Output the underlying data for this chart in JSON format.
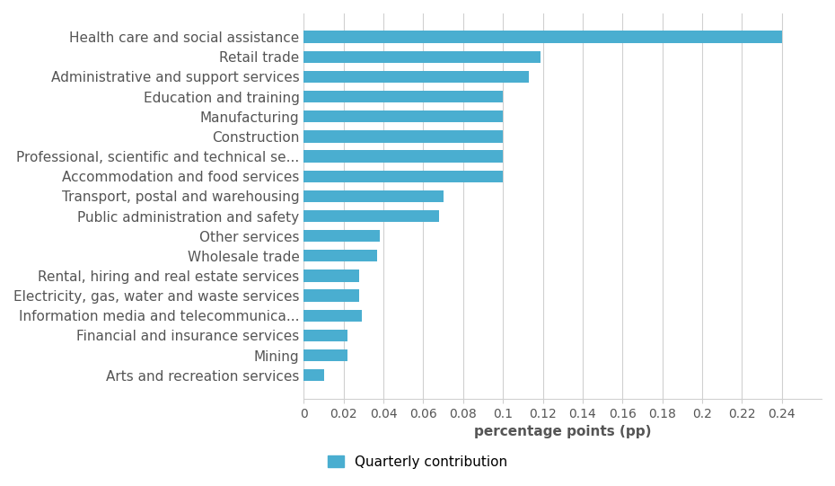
{
  "categories": [
    "Health care and social assistance",
    "Retail trade",
    "Administrative and support services",
    "Education and training",
    "Manufacturing",
    "Construction",
    "Professional, scientific and technical se...",
    "Accommodation and food services",
    "Transport, postal and warehousing",
    "Public administration and safety",
    "Other services",
    "Wholesale trade",
    "Rental, hiring and real estate services",
    "Electricity, gas, water and waste services",
    "Information media and telecommunica...",
    "Financial and insurance services",
    "Mining",
    "Arts and recreation services"
  ],
  "values": [
    0.24,
    0.119,
    0.113,
    0.1,
    0.1,
    0.1,
    0.1,
    0.1,
    0.07,
    0.068,
    0.038,
    0.037,
    0.028,
    0.028,
    0.029,
    0.022,
    0.022,
    0.01
  ],
  "bar_color": "#4aaed0",
  "background_color": "#ffffff",
  "xlabel": "percentage points (pp)",
  "xlim": [
    0,
    0.26
  ],
  "xticks": [
    0,
    0.02,
    0.04,
    0.06,
    0.08,
    0.1,
    0.12,
    0.14,
    0.16,
    0.18,
    0.2,
    0.22,
    0.24
  ],
  "xtick_labels": [
    "0",
    "0.02",
    "0.04",
    "0.06",
    "0.08",
    "0.1",
    "0.12",
    "0.14",
    "0.16",
    "0.18",
    "0.2",
    "0.22",
    "0.24"
  ],
  "legend_label": "Quarterly contribution",
  "grid_color": "#d0d0d0",
  "tick_label_color": "#555555",
  "label_fontsize": 11,
  "tick_fontsize": 10,
  "bar_height": 0.6
}
